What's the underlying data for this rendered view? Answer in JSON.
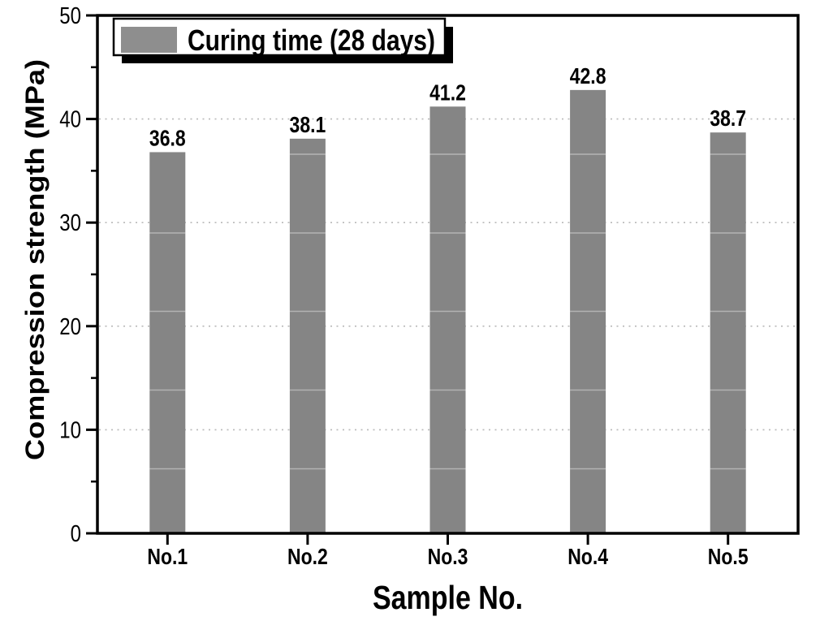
{
  "chart_data": {
    "type": "bar",
    "title": "",
    "categories": [
      "No.1",
      "No.2",
      "No.3",
      "No.4",
      "No.5"
    ],
    "values": [
      36.8,
      38.1,
      41.2,
      42.8,
      38.7
    ],
    "value_labels": [
      "36.8",
      "38.1",
      "41.2",
      "42.8",
      "38.7"
    ],
    "series": [
      {
        "name": "Curing time (28 days)",
        "values": [
          36.8,
          38.1,
          41.2,
          42.8,
          38.7
        ]
      }
    ],
    "xlabel": "Sample No.",
    "ylabel": "Compression strength (MPa)",
    "ylim": [
      0,
      50
    ],
    "ytick_major": [
      0,
      10,
      20,
      30,
      40,
      50
    ],
    "ytick_labels": [
      "0",
      "10",
      "20",
      "30",
      "40",
      "50"
    ],
    "ytick_minor": [
      5,
      15,
      25,
      35,
      45
    ],
    "grid": {
      "horizontal": true,
      "style": "dotted",
      "at": [
        10,
        20,
        30,
        40
      ]
    },
    "legend": {
      "label": "Curing time (28 days)",
      "position": "top-left",
      "shadow": true
    },
    "colors": {
      "bar": "#858585",
      "legend_swatch": "#8e8e8e",
      "axis": "#000000",
      "grid": "#b9b9b9",
      "text": "#000000",
      "background": "#ffffff",
      "legend_shadow": "#000000",
      "legend_box": "#ffffff"
    },
    "bar_width_ratio": 0.26
  }
}
